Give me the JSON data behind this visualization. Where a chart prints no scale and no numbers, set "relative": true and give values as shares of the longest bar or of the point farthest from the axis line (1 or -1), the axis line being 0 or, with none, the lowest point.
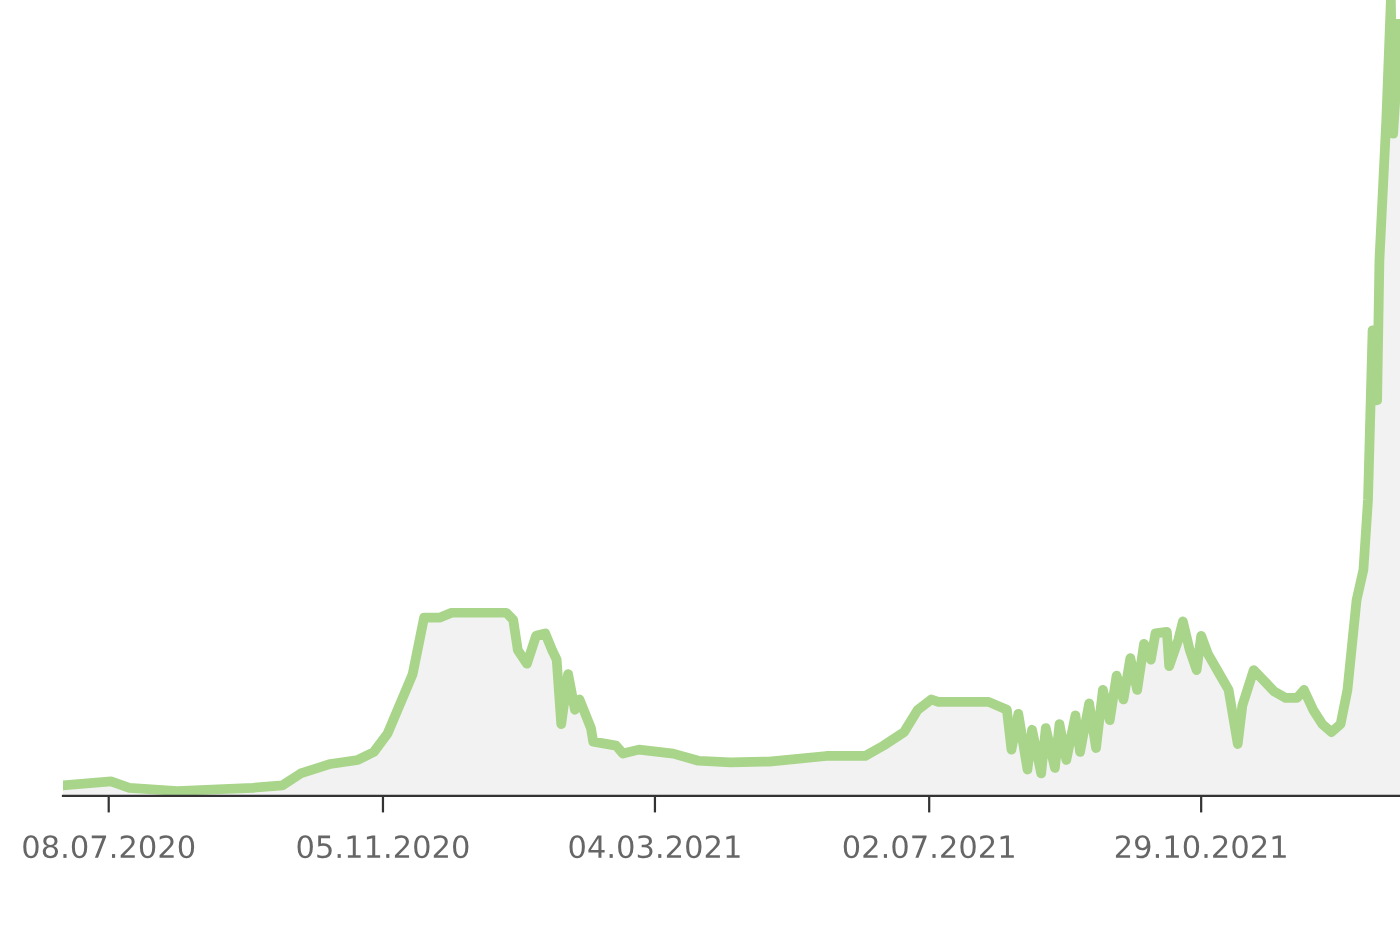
{
  "chart_data": {
    "type": "area",
    "relative": true,
    "grid": false,
    "legend": false,
    "xlim": [
      "2020-06-18",
      "2022-01-24"
    ],
    "xticks": [
      {
        "value": "2020-07-08",
        "label": "08.07.2020"
      },
      {
        "value": "2020-11-05",
        "label": "05.11.2020"
      },
      {
        "value": "2021-03-04",
        "label": "04.03.2021"
      },
      {
        "value": "2021-07-02",
        "label": "02.07.2021"
      },
      {
        "value": "2021-10-29",
        "label": "29.10.2021"
      }
    ],
    "x": [
      "2020-06-18",
      "2020-07-09",
      "2020-07-17",
      "2020-08-07",
      "2020-09-09",
      "2020-09-22",
      "2020-09-30",
      "2020-10-13",
      "2020-10-25",
      "2020-11-01",
      "2020-11-07",
      "2020-11-18",
      "2020-11-23",
      "2020-11-30",
      "2020-12-05",
      "2020-12-29",
      "2021-01-01",
      "2021-01-03",
      "2021-01-07",
      "2021-01-11",
      "2021-01-15",
      "2021-01-18",
      "2021-01-20",
      "2021-01-22",
      "2021-01-25",
      "2021-01-28",
      "2021-01-30",
      "2021-02-04",
      "2021-02-05",
      "2021-02-15",
      "2021-02-18",
      "2021-02-25",
      "2021-03-12",
      "2021-03-23",
      "2021-04-06",
      "2021-04-23",
      "2021-05-18",
      "2021-06-04",
      "2021-06-12",
      "2021-06-21",
      "2021-06-27",
      "2021-07-03",
      "2021-07-06",
      "2021-07-28",
      "2021-08-05",
      "2021-08-07",
      "2021-08-10",
      "2021-08-14",
      "2021-08-16",
      "2021-08-20",
      "2021-08-22",
      "2021-08-26",
      "2021-08-28",
      "2021-08-31",
      "2021-09-04",
      "2021-09-06",
      "2021-09-10",
      "2021-09-13",
      "2021-09-16",
      "2021-09-19",
      "2021-09-22",
      "2021-09-25",
      "2021-09-28",
      "2021-10-01",
      "2021-10-04",
      "2021-10-07",
      "2021-10-09",
      "2021-10-14",
      "2021-10-15",
      "2021-10-19",
      "2021-10-21",
      "2021-10-24",
      "2021-10-27",
      "2021-10-29",
      "2021-11-01",
      "2021-11-06",
      "2021-11-10",
      "2021-11-14",
      "2021-11-16",
      "2021-11-21",
      "2021-11-25",
      "2021-11-30",
      "2021-12-05",
      "2021-12-10",
      "2021-12-13",
      "2021-12-17",
      "2021-12-21",
      "2021-12-25",
      "2021-12-29",
      "2022-01-01",
      "2022-01-05",
      "2022-01-08",
      "2022-01-10",
      "2022-01-12",
      "2022-01-14",
      "2022-01-15",
      "2022-01-18",
      "2022-01-20",
      "2022-01-21",
      "2022-01-24"
    ],
    "series": [
      {
        "color": "#a8d58a",
        "values": [
          0.013,
          0.018,
          0.01,
          0.006,
          0.01,
          0.013,
          0.028,
          0.04,
          0.045,
          0.055,
          0.078,
          0.153,
          0.224,
          0.224,
          0.23,
          0.23,
          0.221,
          0.183,
          0.166,
          0.201,
          0.204,
          0.183,
          0.171,
          0.09,
          0.153,
          0.108,
          0.121,
          0.085,
          0.068,
          0.063,
          0.053,
          0.058,
          0.053,
          0.044,
          0.042,
          0.043,
          0.05,
          0.05,
          0.063,
          0.08,
          0.108,
          0.121,
          0.118,
          0.118,
          0.108,
          0.058,
          0.103,
          0.033,
          0.083,
          0.028,
          0.085,
          0.035,
          0.09,
          0.045,
          0.101,
          0.055,
          0.116,
          0.06,
          0.133,
          0.095,
          0.151,
          0.121,
          0.173,
          0.133,
          0.191,
          0.171,
          0.204,
          0.206,
          0.163,
          0.196,
          0.219,
          0.183,
          0.158,
          0.201,
          0.178,
          0.153,
          0.133,
          0.065,
          0.113,
          0.158,
          0.146,
          0.131,
          0.123,
          0.123,
          0.133,
          0.108,
          0.09,
          0.08,
          0.09,
          0.133,
          0.246,
          0.284,
          0.372,
          0.585,
          0.497,
          0.673,
          0.849,
          1,
          0.832,
          0.97
        ]
      }
    ]
  }
}
